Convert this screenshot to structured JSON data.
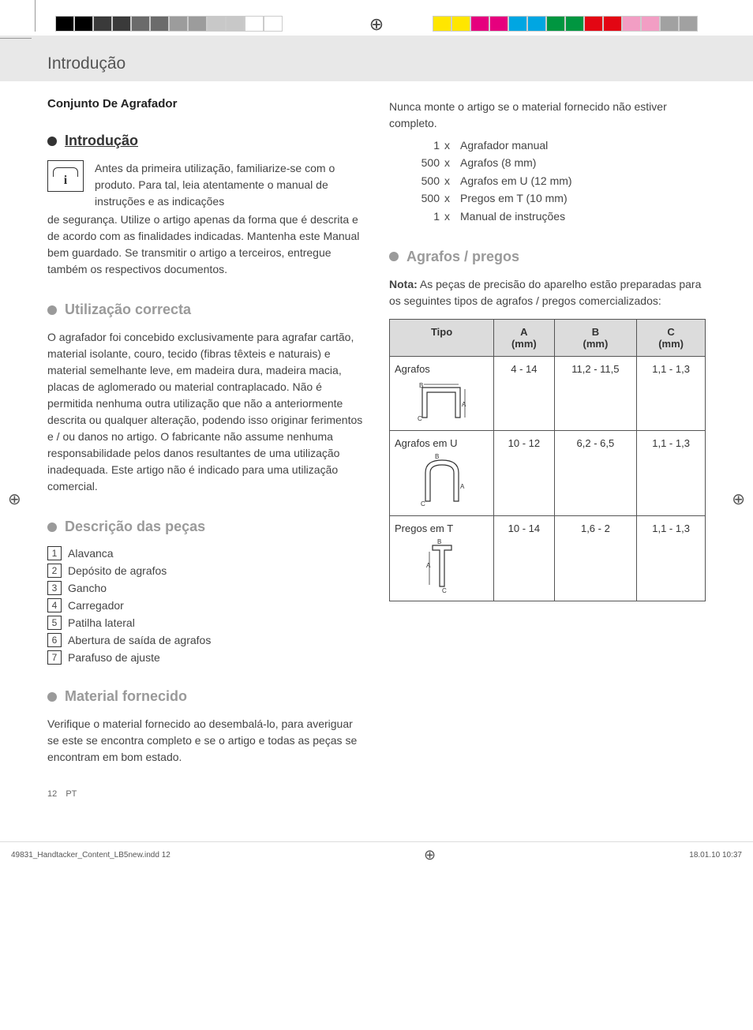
{
  "print": {
    "left_swatches": [
      "#000000",
      "#000000",
      "#3a3a3a",
      "#3a3a3a",
      "#6b6b6b",
      "#6b6b6b",
      "#9c9c9c",
      "#9c9c9c",
      "#c8c8c8",
      "#c8c8c8",
      "#ffffff",
      "#ffffff"
    ],
    "right_swatches": [
      "#ffe600",
      "#ffe600",
      "#e6007e",
      "#e6007e",
      "#00a6e2",
      "#00a6e2",
      "#009640",
      "#009640",
      "#e30613",
      "#e30613",
      "#f29ec4",
      "#f29ec4",
      "#a1a1a1",
      "#a1a1a1"
    ],
    "footer_file": "49831_Handtacker_Content_LB5new.indd   12",
    "footer_date": "18.01.10   10:37"
  },
  "header": {
    "title": "Introdução"
  },
  "product_title": "Conjunto De Agrafador",
  "sections": {
    "intro": {
      "title": "Introdução",
      "lead": "Antes da primeira utilização, familiarize-se com o produto. Para tal, leia atentamente o manual de instruções e as indicações",
      "cont": "de segurança. Utilize o artigo apenas da forma que é descrita e de acordo com as finalidades indicadas. Mantenha este Manual bem guardado. Se transmitir o artigo a terceiros, entregue também os respectivos documentos."
    },
    "usage": {
      "title": "Utilização correcta",
      "text": "O agrafador foi concebido exclusivamente para agrafar cartão, material isolante, couro, tecido (fibras têxteis e naturais) e material semelhante leve, em madeira dura, madeira macia, placas de aglomerado ou material contraplacado. Não é permitida nenhuma outra utilização que não a anteriormente descrita ou qualquer alteração, podendo isso originar ferimentos e / ou danos no artigo. O fabricante não assume nenhuma responsabilidade pelos danos resultantes de uma utilização inadequada. Este artigo não é indicado para uma utilização comercial."
    },
    "parts": {
      "title": "Descrição das peças",
      "items": [
        "Alavanca",
        "Depósito de agrafos",
        "Gancho",
        "Carregador",
        "Patilha lateral",
        "Abertura de saída de agrafos",
        "Parafuso de ajuste"
      ]
    },
    "supply": {
      "title": "Material fornecido",
      "text": "Verifique o material fornecido ao desembalá-lo, para averiguar se este se encontra completo e se o artigo e todas as peças se encontram em bom estado.",
      "text2": "Nunca monte o artigo se o material fornecido não estiver completo.",
      "list": [
        {
          "qty": "1",
          "item": "Agrafador manual"
        },
        {
          "qty": "500",
          "item": "Agrafos (8 mm)"
        },
        {
          "qty": "500",
          "item": "Agrafos em U (12 mm)"
        },
        {
          "qty": "500",
          "item": "Pregos em T (10 mm)"
        },
        {
          "qty": "1",
          "item": "Manual de instruções"
        }
      ]
    },
    "staples": {
      "title": "Agrafos / pregos",
      "note_label": "Nota:",
      "note_text": " As peças de precisão do aparelho estão preparadas para os seguintes tipos de agrafos / pregos comercializados:"
    }
  },
  "table": {
    "headers": {
      "type": "Tipo",
      "a": "A",
      "b": "B",
      "c": "C",
      "unit": "(mm)"
    },
    "header_bg": "#dcdcdc",
    "border_color": "#555555",
    "rows": [
      {
        "type": "Agrafos",
        "a": "4 - 14",
        "b": "11,2 - 11,5",
        "c": "1,1 - 1,3",
        "shape": "staple"
      },
      {
        "type": "Agrafos em U",
        "a": "10 - 12",
        "b": "6,2 - 6,5",
        "c": "1,1 - 1,3",
        "shape": "ustaple"
      },
      {
        "type": "Pregos em T",
        "a": "10 - 14",
        "b": "1,6 - 2",
        "c": "1,1 - 1,3",
        "shape": "tnail"
      }
    ]
  },
  "footer": {
    "page": "12",
    "lang": "PT"
  }
}
